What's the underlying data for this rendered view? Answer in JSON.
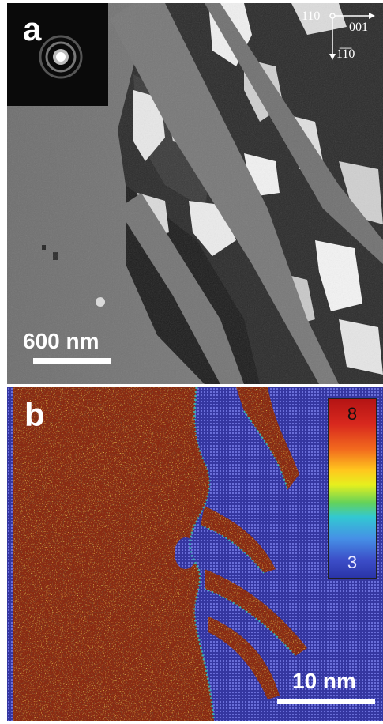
{
  "panel_a": {
    "label": "a",
    "scale_bar_label": "600 nm",
    "orientation": {
      "beam": "110",
      "horizontal": "001",
      "vertical": "1̅1̅0"
    },
    "colors": {
      "matrix": "#7a7a7a",
      "inset_bg": "#0a0a0a"
    }
  },
  "panel_b": {
    "label": "b",
    "scale_bar_label": "10 nm",
    "colorbar": {
      "max_label": "8",
      "min_label": "3"
    },
    "colors": {
      "high": "#b41414",
      "low": "#3a3ca8"
    }
  }
}
